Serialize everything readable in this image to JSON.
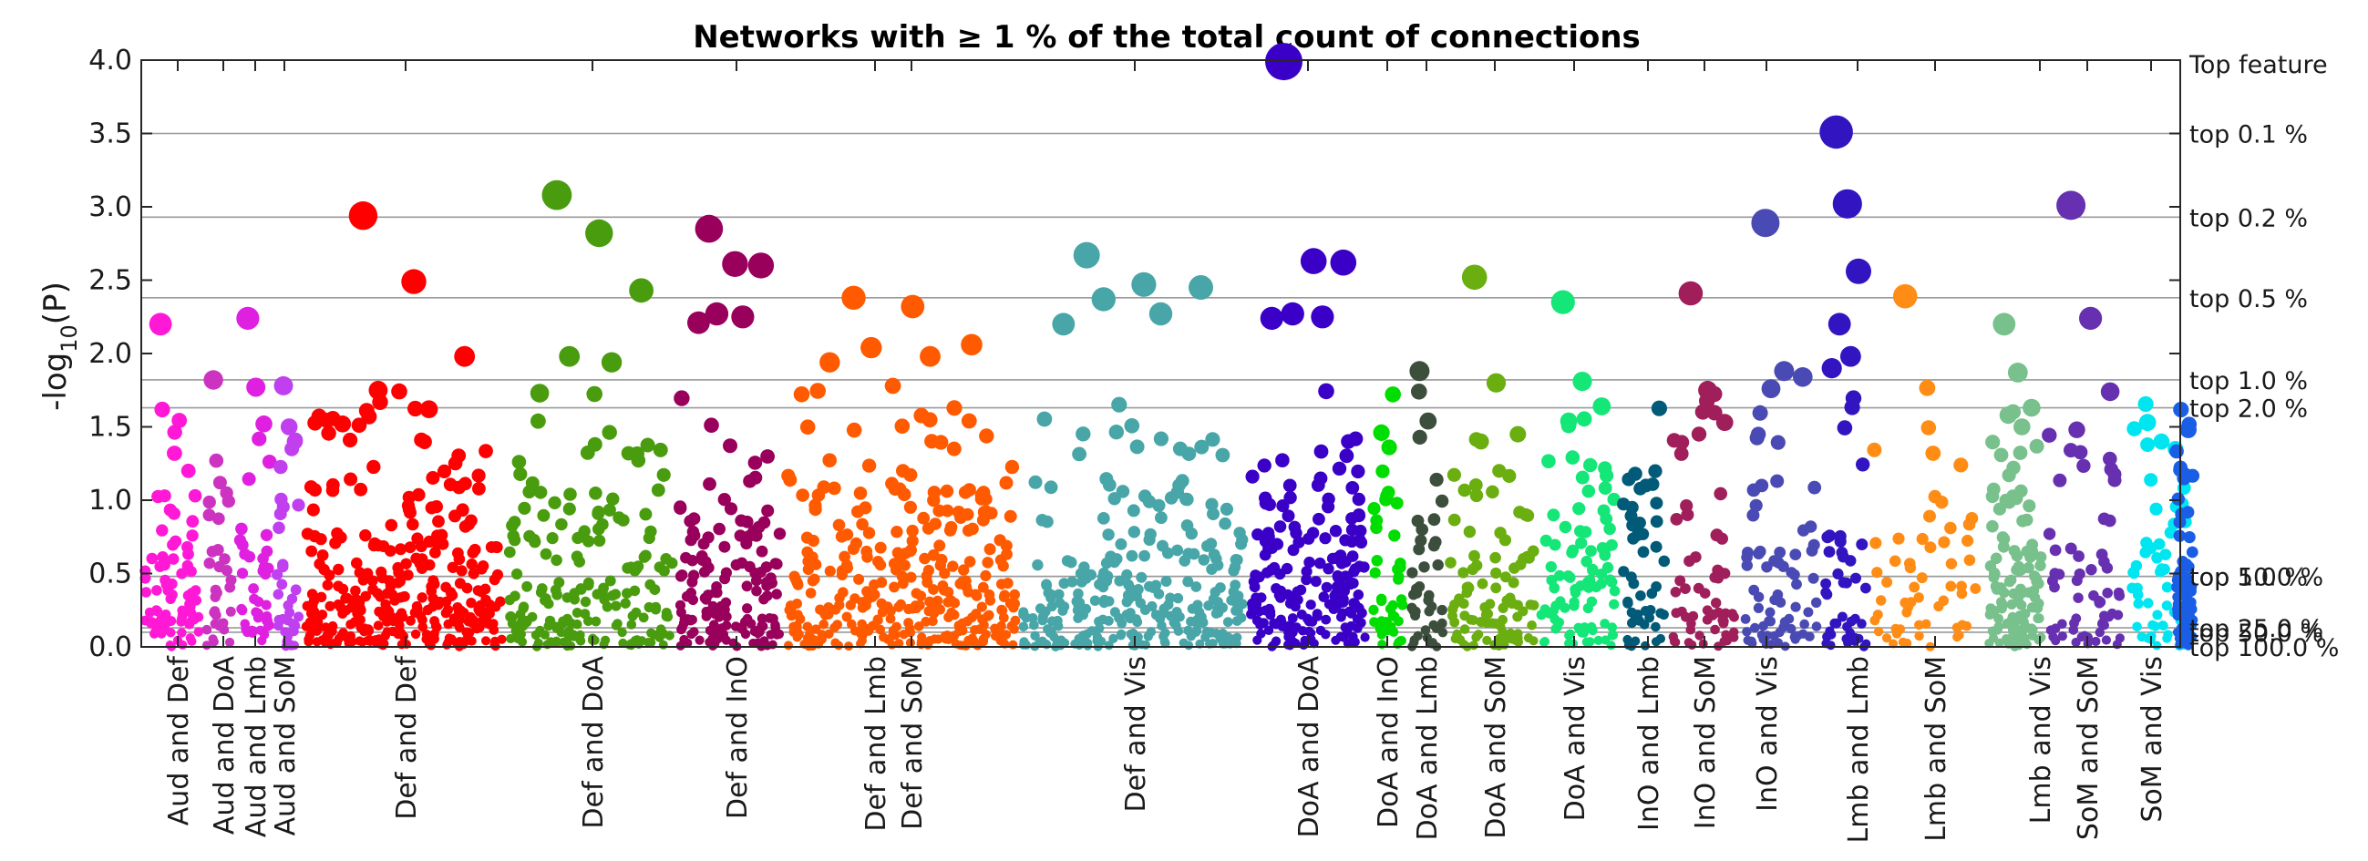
{
  "chart_data": {
    "type": "scatter",
    "title": "Networks with ≥ 1 % of the total count of connections",
    "ylabel_base": "-log",
    "ylabel_sub": "10",
    "ylabel_tail": "(P)",
    "ylim": [
      0,
      4
    ],
    "yticks": [
      "0.0",
      "0.5",
      "1.0",
      "1.5",
      "2.0",
      "2.5",
      "3.0",
      "3.5",
      "4.0"
    ],
    "grid": "horizontal threshold lines",
    "right_axis_label": "Top feature",
    "thresholds": [
      {
        "label": "top   0.1 %",
        "y": 3.5
      },
      {
        "label": "top   0.2 %",
        "y": 2.93
      },
      {
        "label": "top   0.5 %",
        "y": 2.38
      },
      {
        "label": "top   1.0 %",
        "y": 1.82
      },
      {
        "label": "top   2.0 %",
        "y": 1.63
      },
      {
        "label": "top   5.0 %",
        "y": 0.48
      },
      {
        "label": "top 10.0 %",
        "y": 0.48
      },
      {
        "label": "top  25.0 %",
        "y": 0.13
      },
      {
        "label": "top  50.0 %",
        "y": 0.1
      },
      {
        "label": "top 100.0 %",
        "y": 0.0
      }
    ],
    "series": [
      {
        "category": "Aud and Def",
        "color": "#ff19d6",
        "n": 80,
        "top": [
          2.2,
          1.32,
          1.2,
          1.03
        ]
      },
      {
        "category": "Aud and DoA",
        "color": "#cc33c0",
        "n": 30,
        "top": [
          1.82,
          1.12,
          1.05
        ]
      },
      {
        "category": "Aud and Lmb",
        "color": "#e020e0",
        "n": 40,
        "top": [
          2.24,
          1.77,
          1.52
        ]
      },
      {
        "category": "Aud and SoM",
        "color": "#c040f0",
        "n": 35,
        "top": [
          1.78,
          1.5,
          1.4
        ]
      },
      {
        "category": "Def and Def",
        "color": "#ff0000",
        "n": 320,
        "top": [
          2.94,
          2.49,
          1.98,
          1.75,
          1.62,
          1.52
        ]
      },
      {
        "category": "Def and DoA",
        "color": "#4a9c0f",
        "n": 190,
        "top": [
          3.08,
          2.82,
          2.43,
          1.98,
          1.94,
          1.73
        ]
      },
      {
        "category": "Def and InO",
        "color": "#99005c",
        "n": 150,
        "top": [
          2.85,
          2.61,
          2.6,
          2.27,
          2.25,
          2.21
        ]
      },
      {
        "category": "Def and Lmb",
        "color": "#ff5a00",
        "n": 330,
        "top": [
          2.38,
          2.32,
          2.06,
          2.04,
          1.98,
          1.94
        ]
      },
      {
        "category": "Def and SoM",
        "color": "#48a6a8",
        "n": 280,
        "top": [
          2.67,
          2.47,
          2.45,
          2.37,
          2.27,
          2.2
        ]
      },
      {
        "category": "Def and Vis",
        "color": "#3a00c8",
        "n": 190,
        "top": [
          3.99,
          2.63,
          2.62,
          2.27,
          2.25,
          2.24
        ]
      },
      {
        "category": "DoA and DoA",
        "color": "#00dd00",
        "n": 40,
        "top": [
          1.46,
          1.36,
          0.98
        ]
      },
      {
        "category": "DoA and InO",
        "color": "#3c4e3c",
        "n": 40,
        "top": [
          1.88,
          1.54,
          1.14
        ]
      },
      {
        "category": "DoA and Lmb",
        "color": "#6aae10",
        "n": 95,
        "top": [
          2.52,
          1.8,
          1.45,
          1.4
        ]
      },
      {
        "category": "DoA and SoM",
        "color": "#14e678",
        "n": 90,
        "top": [
          2.35,
          1.81,
          1.64,
          1.54
        ]
      },
      {
        "category": "DoA and Vis",
        "color": "#005a78",
        "n": 45,
        "top": [
          1.18,
          1.1,
          0.98
        ]
      },
      {
        "category": "InO and Lmb",
        "color": "#a01e5a",
        "n": 60,
        "top": [
          2.41,
          1.75,
          1.53
        ]
      },
      {
        "category": "InO and SoM",
        "color": "#4a4ab4",
        "n": 70,
        "top": [
          2.89,
          1.88,
          1.84,
          1.76
        ]
      },
      {
        "category": "InO and Vis",
        "color": "#3214c0",
        "n": 45,
        "top": [
          3.51,
          3.02,
          2.56,
          2.2,
          1.98,
          1.9
        ]
      },
      {
        "category": "Lmb and Lmb",
        "color": "#ff8c14",
        "n": 55,
        "top": [
          2.39,
          1.32,
          1.24
        ]
      },
      {
        "category": "Lmb and SoM",
        "color": "#78c08c",
        "n": 120,
        "top": [
          2.2,
          1.87,
          1.63,
          1.58,
          1.5
        ]
      },
      {
        "category": "Lmb and Vis",
        "color": "#6630b0",
        "n": 60,
        "top": [
          3.01,
          2.24,
          1.74,
          1.48
        ]
      },
      {
        "category": "SoM and SoM",
        "color": "#00e6f0",
        "n": 50,
        "top": [
          1.53,
          1.4,
          1.35
        ]
      },
      {
        "category": "SoM and Vis",
        "color": "#1a5ee6",
        "n": 80,
        "top": [
          1.48,
          1.15,
          0.85
        ]
      }
    ]
  }
}
